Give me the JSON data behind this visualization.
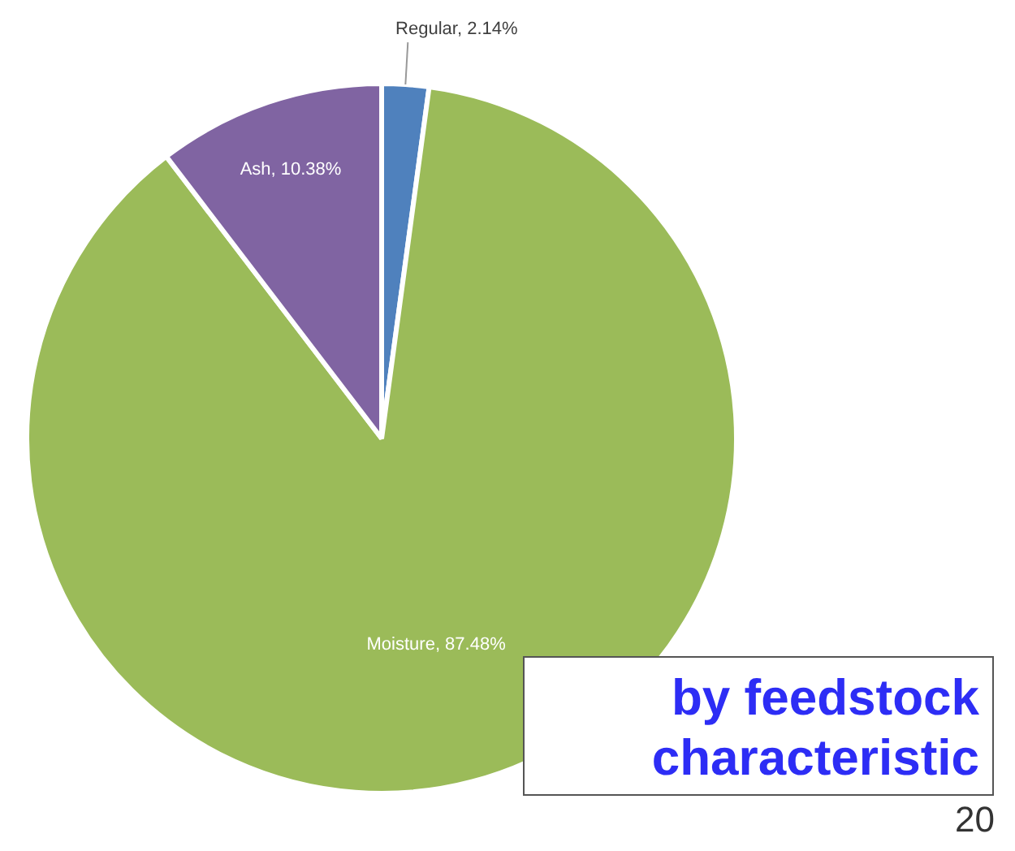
{
  "chart_data": {
    "type": "pie",
    "categories": [
      "Regular",
      "Moisture",
      "Ash"
    ],
    "values": [
      2.14,
      87.48,
      10.38
    ],
    "colors": [
      "#4f81bd",
      "#9bbb59",
      "#8064a2"
    ],
    "value_labels": [
      "2.14%",
      "87.48%",
      "10.38%"
    ],
    "legend": false,
    "annotations": [
      "by feedstock characteristic",
      "20"
    ]
  }
}
